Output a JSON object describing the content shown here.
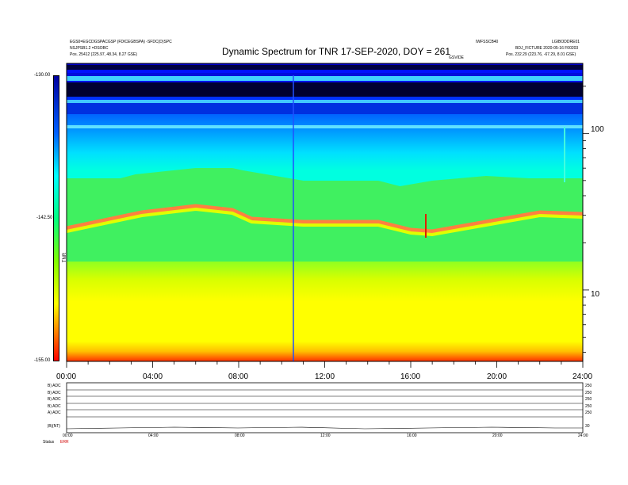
{
  "header": {
    "left_line1": "EGS0=EGCDGSPACGSP (FDICEGBSPA) -SFDC(D)SPC",
    "left_line2": "NSJPSB1.2 =DSOBC",
    "left_line3": "Pos.  25412 (225.97, 48.34, 8.27 GSE)",
    "center_small": "GSVIDE",
    "right_line1": "IWFSSCB40",
    "right_line2": "LGIBODDRE01",
    "right_line3": "BDJ_FICTURE 2020-05-16 F00203",
    "right_line4": "Pos.  232.29 (223.76, -67.29, 8.01 GSE)"
  },
  "chart_data": {
    "type": "heatmap",
    "title": "Dynamic Spectrum for TNR 17-SEP-2020, DOY = 261",
    "x_ticks": [
      "00:00",
      "04:00",
      "08:00",
      "12:00",
      "16:00",
      "20:00",
      "24:00"
    ],
    "xlim_hours": [
      0,
      24
    ],
    "y_scale": "log",
    "y_ticks_right": [
      "100",
      "10"
    ],
    "ylim": [
      3.5,
      280
    ],
    "colorbar": {
      "label": "TNR",
      "tick_labels": [
        "-130.00",
        "-142.50",
        "-155.00"
      ],
      "range": [
        -155.0,
        -130.0
      ],
      "colors": [
        "#0000a0",
        "#0000ff",
        "#00c8ff",
        "#00ffff",
        "#00ff80",
        "#80ff00",
        "#ffff00",
        "#ffc000",
        "#ff6000",
        "#ff0000"
      ]
    },
    "boundary_green_start_hours": [
      0,
      2.5,
      3.2,
      6.0,
      7.7,
      8.2,
      11.0,
      14.5,
      15.5,
      17.0,
      19.5,
      21.5,
      24.0
    ],
    "red_band_hours": [
      0,
      3.5,
      6.0,
      7.7,
      8.6,
      11.0,
      14.5,
      16.0,
      17.0,
      19.5,
      22.0,
      24.0
    ],
    "yellow_start_hours": [
      0,
      6.0,
      12.0,
      18.0,
      24.0
    ]
  },
  "lower_panel": {
    "x_ticks": [
      "00:00",
      "04:00",
      "08:00",
      "12:00",
      "16:00",
      "20:00",
      "24:00"
    ],
    "row_labels": [
      "B) ADC",
      "B) ADC",
      "B) ADC",
      "B) ADC",
      "A) ADC",
      "|B|(NT)"
    ],
    "right_labels": [
      "250",
      "250",
      "250",
      "250",
      "250",
      "30"
    ],
    "footer_left": "Status",
    "footer_value": "ERR"
  }
}
